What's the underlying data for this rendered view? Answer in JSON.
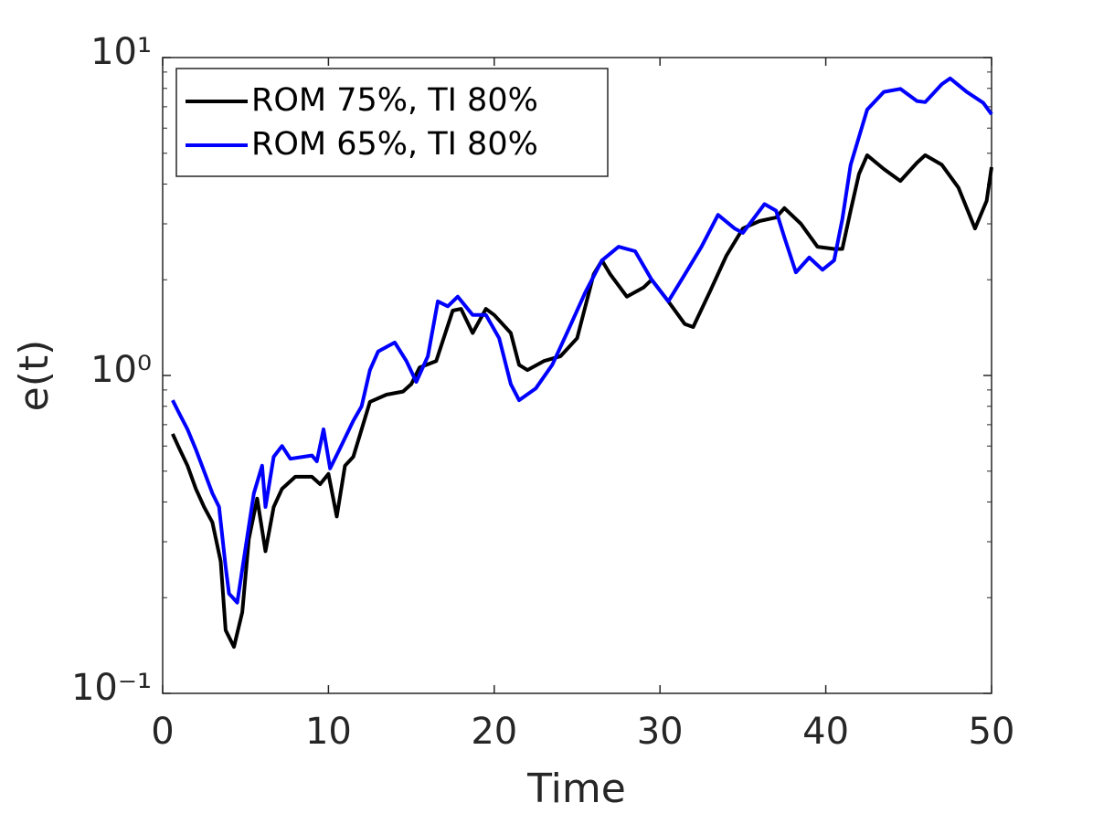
{
  "chart_data": {
    "type": "line",
    "xlabel": "Time",
    "ylabel": "e(t)",
    "log_y": true,
    "grid": false,
    "legend": "upper left",
    "xlim": [
      0,
      50
    ],
    "xticks": [
      0,
      10,
      20,
      30,
      40,
      50
    ],
    "ylim": [
      0.1,
      10
    ],
    "yticks": [
      {
        "value": 0.1,
        "label": "10⁻¹"
      },
      {
        "value": 1,
        "label": "10⁰"
      },
      {
        "value": 10,
        "label": "10¹"
      }
    ],
    "series": [
      {
        "name": "ROM 75%, TI 80%",
        "color": "#000000",
        "x": [
          0.6,
          1,
          1.5,
          2,
          2.5,
          3,
          3.5,
          3.8,
          4.3,
          4.8,
          5.2,
          5.7,
          6.2,
          6.7,
          7.2,
          8,
          9,
          9.5,
          10,
          10.5,
          11,
          11.5,
          12,
          12.5,
          13.5,
          14.5,
          15,
          15.5,
          16.5,
          17.5,
          18,
          18.7,
          19.5,
          20,
          21,
          21.5,
          22,
          23,
          24,
          25,
          26,
          26.5,
          27,
          28,
          29,
          29.5,
          30.5,
          31.5,
          32,
          33,
          34,
          35,
          36,
          37,
          37.5,
          38.5,
          39.5,
          40.5,
          41,
          41.5,
          42,
          42.5,
          43.5,
          44.5,
          45.5,
          46,
          47,
          48,
          49,
          49.7,
          50
        ],
        "values": [
          0.655,
          0.59,
          0.52,
          0.44,
          0.386,
          0.345,
          0.26,
          0.158,
          0.14,
          0.18,
          0.306,
          0.41,
          0.28,
          0.386,
          0.44,
          0.48,
          0.48,
          0.455,
          0.49,
          0.36,
          0.52,
          0.555,
          0.677,
          0.826,
          0.87,
          0.89,
          0.94,
          1.06,
          1.11,
          1.6,
          1.62,
          1.36,
          1.62,
          1.55,
          1.36,
          1.08,
          1.04,
          1.11,
          1.15,
          1.31,
          2.08,
          2.3,
          2.08,
          1.77,
          1.89,
          2.0,
          1.71,
          1.45,
          1.42,
          1.83,
          2.38,
          2.9,
          3.06,
          3.14,
          3.36,
          3.0,
          2.54,
          2.5,
          2.5,
          3.3,
          4.3,
          4.93,
          4.46,
          4.09,
          4.67,
          4.93,
          4.6,
          3.9,
          2.9,
          3.54,
          4.52
        ]
      },
      {
        "name": "ROM 65%, TI 80%",
        "color": "#0000ff",
        "x": [
          0.6,
          1,
          1.5,
          2,
          2.5,
          3,
          3.4,
          3.8,
          4,
          4.5,
          5,
          5.5,
          6,
          6.2,
          6.7,
          7.2,
          7.7,
          8.5,
          9,
          9.3,
          9.7,
          10.1,
          10.7,
          11.5,
          12,
          12.5,
          13,
          14,
          14.7,
          15.3,
          16,
          16.6,
          17.2,
          17.8,
          18.7,
          19.5,
          20.3,
          21,
          21.5,
          22.5,
          23.5,
          24.5,
          25.5,
          26.5,
          27.5,
          28.5,
          29.5,
          30.5,
          31.5,
          32.5,
          33.5,
          34.5,
          35,
          36.3,
          37,
          37.5,
          38.2,
          39,
          39.8,
          40.5,
          41,
          41.5,
          42.5,
          43.5,
          44.5,
          45.5,
          46,
          47,
          47.5,
          48.5,
          49.5,
          50
        ],
        "values": [
          0.836,
          0.76,
          0.677,
          0.585,
          0.5,
          0.426,
          0.386,
          0.25,
          0.206,
          0.193,
          0.287,
          0.426,
          0.52,
          0.386,
          0.555,
          0.6,
          0.547,
          0.555,
          0.56,
          0.537,
          0.677,
          0.51,
          0.59,
          0.72,
          0.8,
          1.04,
          1.19,
          1.27,
          1.11,
          0.955,
          1.15,
          1.71,
          1.65,
          1.77,
          1.55,
          1.55,
          1.31,
          0.94,
          0.836,
          0.91,
          1.08,
          1.4,
          1.83,
          2.3,
          2.54,
          2.46,
          2.0,
          1.71,
          2.08,
          2.54,
          3.2,
          2.9,
          2.81,
          3.46,
          3.3,
          2.72,
          2.11,
          2.35,
          2.15,
          2.3,
          3.1,
          4.6,
          6.86,
          7.8,
          7.97,
          7.3,
          7.24,
          8.25,
          8.6,
          7.8,
          7.2,
          6.63
        ]
      }
    ]
  }
}
